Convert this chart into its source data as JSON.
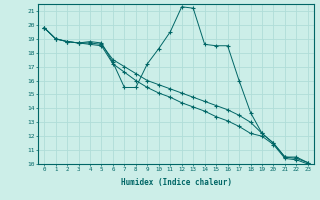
{
  "xlabel": "Humidex (Indice chaleur)",
  "bg_color": "#cceee8",
  "grid_color": "#b0ddd8",
  "line_color": "#006666",
  "xlim": [
    -0.5,
    23.5
  ],
  "ylim": [
    10,
    21.5
  ],
  "xticks": [
    0,
    1,
    2,
    3,
    4,
    5,
    6,
    7,
    8,
    9,
    10,
    11,
    12,
    13,
    14,
    15,
    16,
    17,
    18,
    19,
    20,
    21,
    22,
    23
  ],
  "yticks": [
    10,
    11,
    12,
    13,
    14,
    15,
    16,
    17,
    18,
    19,
    20,
    21
  ],
  "series1_x": [
    0,
    1,
    2,
    3,
    4,
    5,
    6,
    7,
    8,
    9,
    10,
    11,
    12,
    13,
    14,
    15,
    16,
    17,
    18,
    19,
    20,
    21,
    22,
    23
  ],
  "series1_y": [
    19.8,
    19.0,
    18.8,
    18.7,
    18.8,
    18.7,
    17.3,
    15.5,
    15.5,
    17.2,
    18.3,
    19.5,
    21.3,
    21.2,
    18.6,
    18.5,
    18.5,
    16.0,
    13.7,
    12.2,
    11.5,
    10.5,
    10.5,
    10.1
  ],
  "series2_x": [
    0,
    1,
    2,
    3,
    4,
    5,
    6,
    7,
    8,
    9,
    10,
    11,
    12,
    13,
    14,
    15,
    16,
    17,
    18,
    19,
    20,
    21,
    22,
    23
  ],
  "series2_y": [
    19.8,
    19.0,
    18.8,
    18.7,
    18.7,
    18.6,
    17.5,
    17.0,
    16.5,
    16.0,
    15.7,
    15.4,
    15.1,
    14.8,
    14.5,
    14.2,
    13.9,
    13.5,
    13.0,
    12.2,
    11.5,
    10.5,
    10.4,
    10.1
  ],
  "series3_x": [
    0,
    1,
    2,
    3,
    4,
    5,
    6,
    7,
    8,
    9,
    10,
    11,
    12,
    13,
    14,
    15,
    16,
    17,
    18,
    19,
    20,
    21,
    22,
    23
  ],
  "series3_y": [
    19.8,
    19.0,
    18.8,
    18.7,
    18.6,
    18.5,
    17.2,
    16.6,
    16.0,
    15.5,
    15.1,
    14.8,
    14.4,
    14.1,
    13.8,
    13.4,
    13.1,
    12.7,
    12.2,
    12.0,
    11.4,
    10.4,
    10.3,
    10.0
  ]
}
